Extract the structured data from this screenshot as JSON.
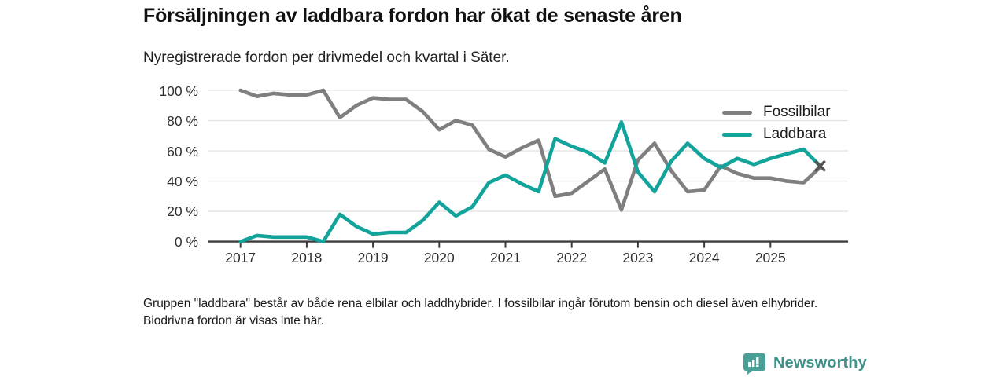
{
  "header": {
    "title": "Försäljningen av laddbara fordon har ökat de senaste åren",
    "subtitle": "Nyregistrerade fordon per drivmedel och kvartal i Säter."
  },
  "chart_data": {
    "type": "line",
    "title": "Försäljningen av laddbara fordon har ökat de senaste åren",
    "subtitle": "Nyregistrerade fordon per drivmedel och kvartal i Säter.",
    "x_tick_labels": [
      "2017",
      "2018",
      "2019",
      "2020",
      "2021",
      "2022",
      "2023",
      "2024",
      "2025"
    ],
    "y_tick_labels_top_down": [
      "100 %",
      "80 %",
      "60 %",
      "40 %",
      "20 %",
      "0 %"
    ],
    "ylim": [
      0,
      100
    ],
    "grid": true,
    "legend_position": "upper-right",
    "x_values": [
      "2017 Q1",
      "2017 Q2",
      "2017 Q3",
      "2017 Q4",
      "2018 Q1",
      "2018 Q2",
      "2018 Q3",
      "2018 Q4",
      "2019 Q1",
      "2019 Q2",
      "2019 Q3",
      "2019 Q4",
      "2020 Q1",
      "2020 Q2",
      "2020 Q3",
      "2020 Q4",
      "2021 Q1",
      "2021 Q2",
      "2021 Q3",
      "2021 Q4",
      "2022 Q1",
      "2022 Q2",
      "2022 Q3",
      "2022 Q4",
      "2023 Q1",
      "2023 Q2",
      "2023 Q3",
      "2023 Q4",
      "2024 Q1",
      "2024 Q2",
      "2024 Q3",
      "2024 Q4",
      "2025 Q1",
      "2025 Q2",
      "2025 Q3",
      "2025 Q4"
    ],
    "series": [
      {
        "name": "Fossilbilar",
        "color": "#7f7f7f",
        "values": [
          100,
          96,
          98,
          97,
          97,
          100,
          82,
          90,
          95,
          94,
          94,
          86,
          74,
          80,
          77,
          61,
          56,
          62,
          67,
          30,
          32,
          40,
          48,
          21,
          54,
          65,
          47,
          33,
          34,
          50,
          45,
          42,
          42,
          40,
          39,
          49
        ]
      },
      {
        "name": "Laddbara",
        "color": "#12a39b",
        "values": [
          0,
          4,
          3,
          3,
          3,
          0,
          18,
          10,
          5,
          6,
          6,
          14,
          26,
          17,
          23,
          39,
          44,
          38,
          33,
          68,
          63,
          59,
          52,
          79,
          46,
          33,
          53,
          65,
          55,
          49,
          55,
          51,
          55,
          58,
          61,
          50
        ]
      }
    ],
    "end_marker": {
      "at": "2025 Q4",
      "shape": "x",
      "color": "#555555"
    }
  },
  "footer": {
    "note": "Gruppen \"laddbara\" består av både rena elbilar och laddhybrider. I fossilbilar ingår förutom bensin och diesel även elhybrider. Biodrivna fordon är visas inte här."
  },
  "branding": {
    "name": "Newsworthy",
    "badge_color": "#4aa096",
    "text_color": "#41918b"
  }
}
